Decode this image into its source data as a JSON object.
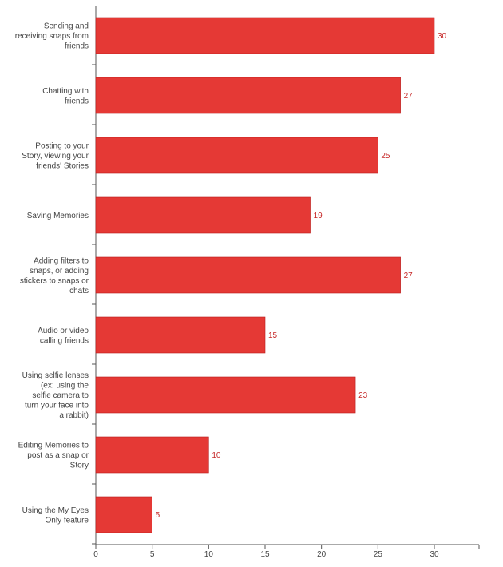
{
  "chart_data": {
    "type": "bar",
    "orientation": "horizontal",
    "title": "",
    "xlabel": "",
    "ylabel": "",
    "bar_color": "#e53935",
    "value_label_color": "#c62828",
    "axis_color": "#555555",
    "categories": [
      "Sending and receiving snaps from friends",
      "Chatting with friends",
      "Posting to your Story, viewing your friends' Stories",
      "Saving Memories",
      "Adding filters to snaps, or adding stickers to snaps or chats",
      "Audio or video calling friends",
      "Using selfie lenses (ex: using the selfie camera to turn your face into a rabbit)",
      "Editing Memories to post as a snap or Story",
      "Using the My Eyes Only feature"
    ],
    "category_lines": [
      [
        "Sending and",
        "receiving snaps from",
        "friends"
      ],
      [
        "Chatting with",
        "friends"
      ],
      [
        "Posting to your",
        "Story, viewing your",
        "friends' Stories"
      ],
      [
        "Saving Memories"
      ],
      [
        "Adding filters to",
        "snaps, or adding",
        "stickers to snaps or",
        "chats"
      ],
      [
        "Audio or video",
        "calling friends"
      ],
      [
        "Using selfie lenses",
        "(ex: using the",
        "selfie camera to",
        "turn your face into",
        "a rabbit)"
      ],
      [
        "Editing Memories to",
        "post as a snap or",
        "Story"
      ],
      [
        "Using the My Eyes",
        "Only feature"
      ]
    ],
    "values": [
      30,
      27,
      25,
      19,
      27,
      15,
      23,
      10,
      5
    ],
    "xlim": [
      0,
      34
    ],
    "xticks": [
      0,
      5,
      10,
      15,
      20,
      25,
      30
    ],
    "grid": false,
    "legend": "none"
  }
}
